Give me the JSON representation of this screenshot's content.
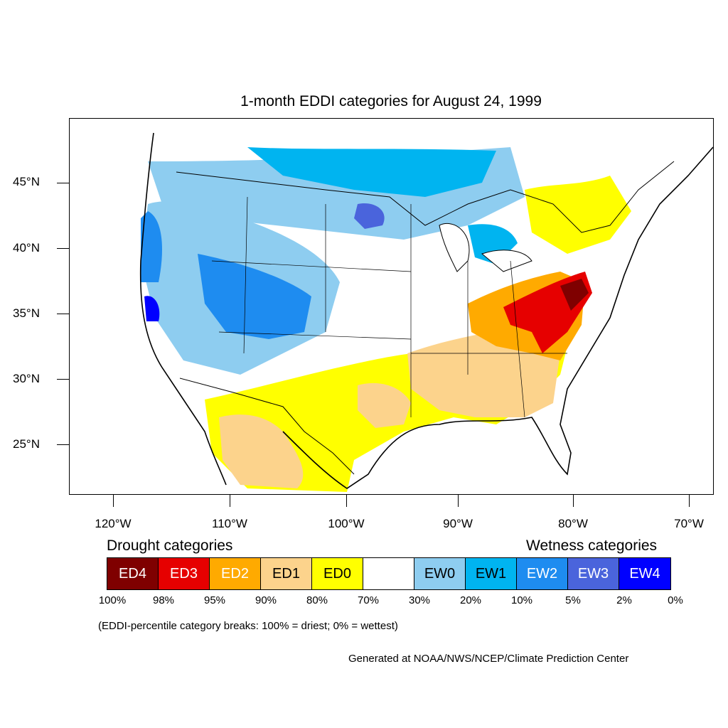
{
  "title": "1-month EDDI categories for August 24, 1999",
  "axes": {
    "lat_labels": [
      "45°N",
      "40°N",
      "35°N",
      "30°N",
      "25°N"
    ],
    "lon_labels": [
      "120°W",
      "110°W",
      "100°W",
      "90°W",
      "80°W",
      "70°W"
    ]
  },
  "legend": {
    "drought_heading": "Drought categories",
    "wetness_heading": "Wetness categories",
    "categories": [
      {
        "label": "ED4",
        "color": "#7f0000",
        "text_color": "#ffffff"
      },
      {
        "label": "ED3",
        "color": "#e60000",
        "text_color": "#ffffff"
      },
      {
        "label": "ED2",
        "color": "#ffaa00",
        "text_color": "#ffffff"
      },
      {
        "label": "ED1",
        "color": "#fcd38c",
        "text_color": "#000000"
      },
      {
        "label": "ED0",
        "color": "#ffff00",
        "text_color": "#000000"
      },
      {
        "label": "",
        "color": "#ffffff",
        "text_color": "#000000"
      },
      {
        "label": "EW0",
        "color": "#8ecdf0",
        "text_color": "#000000"
      },
      {
        "label": "EW1",
        "color": "#00b4f0",
        "text_color": "#000000"
      },
      {
        "label": "EW2",
        "color": "#1e8cf0",
        "text_color": "#ffffff"
      },
      {
        "label": "EW3",
        "color": "#4a64dc",
        "text_color": "#ffffff"
      },
      {
        "label": "EW4",
        "color": "#0000ff",
        "text_color": "#ffffff"
      }
    ],
    "percent_breaks": [
      "100%",
      "98%",
      "95%",
      "90%",
      "80%",
      "70%",
      "30%",
      "20%",
      "10%",
      "5%",
      "2%",
      "0%"
    ],
    "note": "(EDDI-percentile category breaks: 100% = driest; 0% = wettest)"
  },
  "credit": "Generated at NOAA/NWS/NCEP/Climate Prediction Center"
}
